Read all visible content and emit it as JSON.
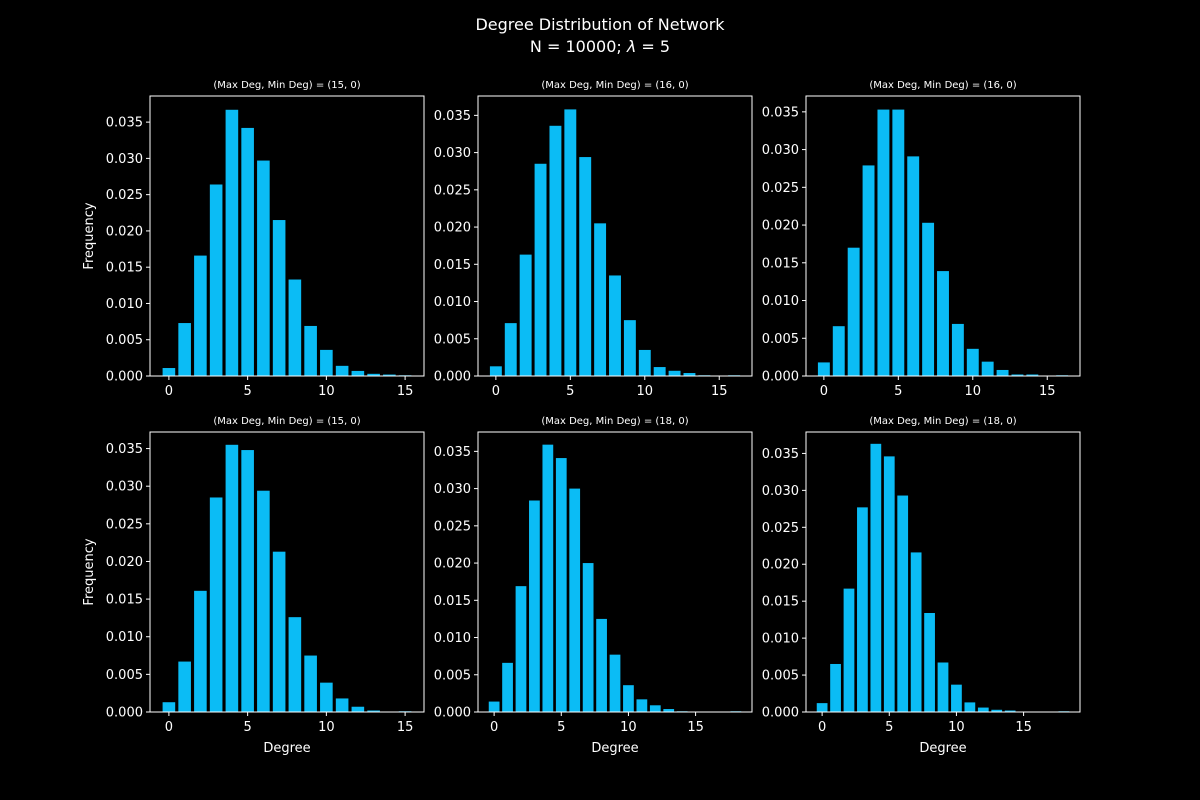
{
  "figure": {
    "title": "Degree Distribution of Network",
    "subtitle_prefix": "N = 10000; ",
    "subtitle_lambda": "λ",
    "subtitle_suffix": " = 5",
    "background": "#000000",
    "bar_color": "#0bbcf5",
    "axes_color": "#ffffff"
  },
  "chart_data": [
    {
      "type": "bar",
      "title": "(Max Deg, Min Deg) = (15, 0)",
      "xlabel": "",
      "ylabel": "Frequency",
      "x": [
        0,
        1,
        2,
        3,
        4,
        5,
        6,
        7,
        8,
        9,
        10,
        11,
        12,
        13,
        14,
        15
      ],
      "values": [
        0.0011,
        0.0073,
        0.0166,
        0.0264,
        0.0367,
        0.0342,
        0.0297,
        0.0215,
        0.0133,
        0.0069,
        0.0036,
        0.0014,
        0.0007,
        0.0003,
        0.0002,
        0.0001
      ],
      "xlim": [
        -1.2,
        16.2
      ],
      "ylim": [
        0,
        0.0386
      ],
      "xticks": [
        0,
        5,
        10,
        15
      ],
      "xtick_labels": [
        "0",
        "5",
        "10",
        "15"
      ],
      "yticks": [
        0,
        0.005,
        0.01,
        0.015,
        0.02,
        0.025,
        0.03,
        0.035
      ],
      "ytick_labels": [
        "0.000",
        "0.005",
        "0.010",
        "0.015",
        "0.020",
        "0.025",
        "0.030",
        "0.035"
      ]
    },
    {
      "type": "bar",
      "title": "(Max Deg, Min Deg) = (16, 0)",
      "xlabel": "",
      "ylabel": "",
      "x": [
        0,
        1,
        2,
        3,
        4,
        5,
        6,
        7,
        8,
        9,
        10,
        11,
        12,
        13,
        14,
        15,
        16
      ],
      "values": [
        0.0013,
        0.0071,
        0.0163,
        0.0285,
        0.0336,
        0.0358,
        0.0294,
        0.0205,
        0.0135,
        0.0075,
        0.0035,
        0.0012,
        0.0007,
        0.0004,
        0.0001,
        0.0,
        0.0001
      ],
      "xlim": [
        -1.2,
        17.2
      ],
      "ylim": [
        0,
        0.0376
      ],
      "xticks": [
        0,
        5,
        10,
        15
      ],
      "xtick_labels": [
        "0",
        "5",
        "10",
        "15"
      ],
      "yticks": [
        0,
        0.005,
        0.01,
        0.015,
        0.02,
        0.025,
        0.03,
        0.035
      ],
      "ytick_labels": [
        "0.000",
        "0.005",
        "0.010",
        "0.015",
        "0.020",
        "0.025",
        "0.030",
        "0.035"
      ]
    },
    {
      "type": "bar",
      "title": "(Max Deg, Min Deg) = (16, 0)",
      "xlabel": "",
      "ylabel": "",
      "x": [
        0,
        1,
        2,
        3,
        4,
        5,
        6,
        7,
        8,
        9,
        10,
        11,
        12,
        13,
        14,
        15,
        16
      ],
      "values": [
        0.0018,
        0.0066,
        0.017,
        0.0279,
        0.0353,
        0.0353,
        0.0291,
        0.0203,
        0.0139,
        0.0069,
        0.0036,
        0.0019,
        0.0008,
        0.0002,
        0.0002,
        0.0,
        0.0001
      ],
      "xlim": [
        -1.2,
        17.2
      ],
      "ylim": [
        0,
        0.0371
      ],
      "xticks": [
        0,
        5,
        10,
        15
      ],
      "xtick_labels": [
        "0",
        "5",
        "10",
        "15"
      ],
      "yticks": [
        0,
        0.005,
        0.01,
        0.015,
        0.02,
        0.025,
        0.03,
        0.035
      ],
      "ytick_labels": [
        "0.000",
        "0.005",
        "0.010",
        "0.015",
        "0.020",
        "0.025",
        "0.030",
        "0.035"
      ]
    },
    {
      "type": "bar",
      "title": "(Max Deg, Min Deg) = (15, 0)",
      "xlabel": "Degree",
      "ylabel": "Frequency",
      "x": [
        0,
        1,
        2,
        3,
        4,
        5,
        6,
        7,
        8,
        9,
        10,
        11,
        12,
        13,
        14,
        15
      ],
      "values": [
        0.0013,
        0.0067,
        0.0161,
        0.0285,
        0.0355,
        0.0348,
        0.0294,
        0.0213,
        0.0126,
        0.0075,
        0.0039,
        0.0018,
        0.0007,
        0.0002,
        0.0,
        0.0001
      ],
      "xlim": [
        -1.2,
        16.2
      ],
      "ylim": [
        0,
        0.0372
      ],
      "xticks": [
        0,
        5,
        10,
        15
      ],
      "xtick_labels": [
        "0",
        "5",
        "10",
        "15"
      ],
      "yticks": [
        0,
        0.005,
        0.01,
        0.015,
        0.02,
        0.025,
        0.03,
        0.035
      ],
      "ytick_labels": [
        "0.000",
        "0.005",
        "0.010",
        "0.015",
        "0.020",
        "0.025",
        "0.030",
        "0.035"
      ]
    },
    {
      "type": "bar",
      "title": "(Max Deg, Min Deg) = (18, 0)",
      "xlabel": "Degree",
      "ylabel": "",
      "x": [
        0,
        1,
        2,
        3,
        4,
        5,
        6,
        7,
        8,
        9,
        10,
        11,
        12,
        13,
        14,
        15,
        16,
        17,
        18
      ],
      "values": [
        0.0014,
        0.0066,
        0.0169,
        0.0284,
        0.0359,
        0.0341,
        0.03,
        0.02,
        0.0125,
        0.0077,
        0.0036,
        0.0017,
        0.0009,
        0.0004,
        0.0001,
        0.0,
        0.0,
        0.0,
        0.0001
      ],
      "xlim": [
        -1.2,
        19.2
      ],
      "ylim": [
        0,
        0.0376
      ],
      "xticks": [
        0,
        5,
        10,
        15
      ],
      "xtick_labels": [
        "0",
        "5",
        "10",
        "15"
      ],
      "yticks": [
        0,
        0.005,
        0.01,
        0.015,
        0.02,
        0.025,
        0.03,
        0.035
      ],
      "ytick_labels": [
        "0.000",
        "0.005",
        "0.010",
        "0.015",
        "0.020",
        "0.025",
        "0.030",
        "0.035"
      ]
    },
    {
      "type": "bar",
      "title": "(Max Deg, Min Deg) = (18, 0)",
      "xlabel": "Degree",
      "ylabel": "",
      "x": [
        0,
        1,
        2,
        3,
        4,
        5,
        6,
        7,
        8,
        9,
        10,
        11,
        12,
        13,
        14,
        15,
        16,
        17,
        18
      ],
      "values": [
        0.0012,
        0.0065,
        0.0167,
        0.0277,
        0.0363,
        0.0346,
        0.0293,
        0.0216,
        0.0134,
        0.0067,
        0.0037,
        0.0013,
        0.0006,
        0.0003,
        0.0002,
        0.0,
        0.0,
        0.0,
        0.0001
      ],
      "xlim": [
        -1.2,
        19.2
      ],
      "ylim": [
        0,
        0.0379
      ],
      "xticks": [
        0,
        5,
        10,
        15
      ],
      "xtick_labels": [
        "0",
        "5",
        "10",
        "15"
      ],
      "yticks": [
        0,
        0.005,
        0.01,
        0.015,
        0.02,
        0.025,
        0.03,
        0.035
      ],
      "ytick_labels": [
        "0.000",
        "0.005",
        "0.010",
        "0.015",
        "0.020",
        "0.025",
        "0.030",
        "0.035"
      ]
    }
  ]
}
